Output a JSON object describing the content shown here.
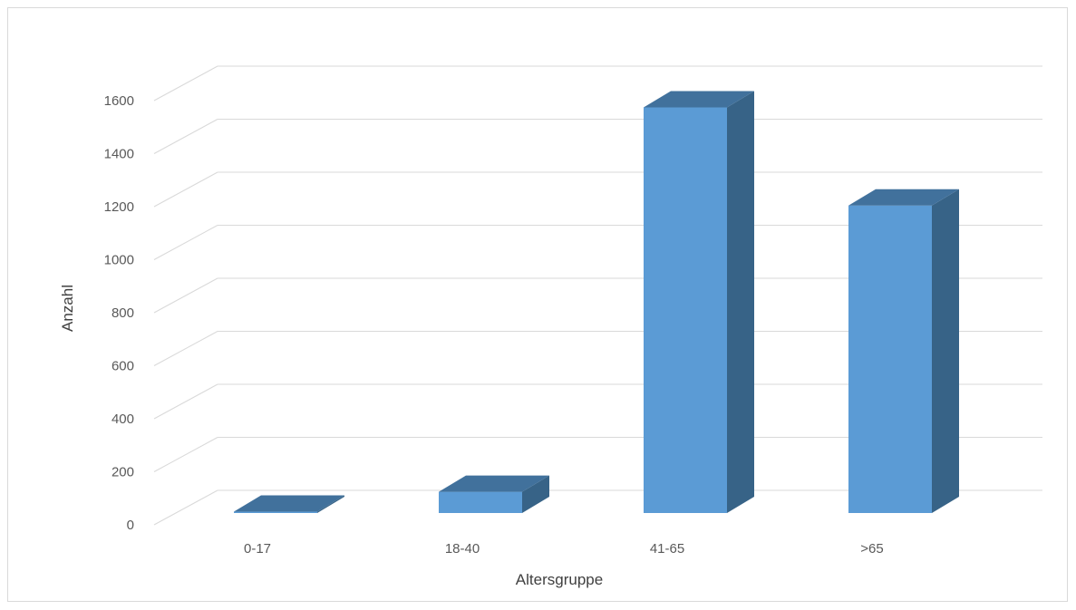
{
  "chart_data": {
    "type": "bar",
    "style": "3d-column",
    "categories": [
      "0-17",
      "18-40",
      "41-65",
      ">65"
    ],
    "values": [
      5,
      80,
      1530,
      1160
    ],
    "xlabel": "Altersgruppe",
    "ylabel": "Anzahl",
    "ylim": [
      0,
      1600
    ],
    "yticks": [
      "0",
      "200",
      "400",
      "600",
      "800",
      "1000",
      "1200",
      "1400",
      "1600"
    ],
    "grid": true,
    "legend": "none",
    "colors": {
      "front": "#5b9bd5",
      "side": "#376387",
      "top": "#41719c",
      "grid": "#d9d9d9"
    }
  }
}
